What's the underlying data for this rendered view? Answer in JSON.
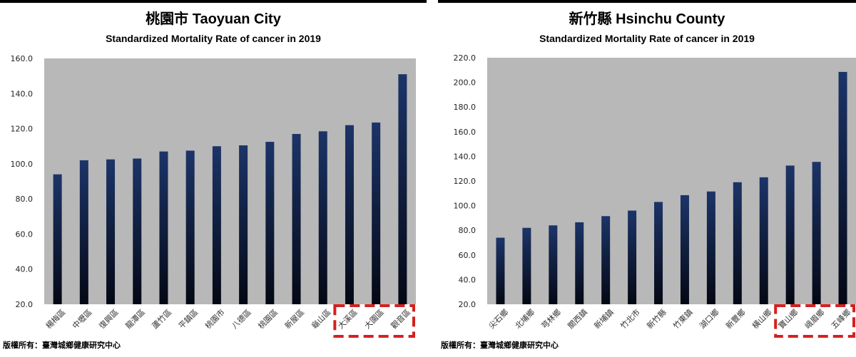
{
  "chart_data": [
    {
      "type": "bar",
      "title": "桃園市 Taoyuan City",
      "subtitle": "Standardized Mortality Rate of cancer in 2019",
      "categories": [
        "楊梅區",
        "中壢區",
        "復興區",
        "龍潭區",
        "蘆竹區",
        "平鎮區",
        "桃園市",
        "八德區",
        "桃園區",
        "新屋區",
        "龜山區",
        "大溪區",
        "大園區",
        "觀音區"
      ],
      "values": [
        94.0,
        102.0,
        102.5,
        103.0,
        107.0,
        107.5,
        110.0,
        110.5,
        112.5,
        117.0,
        118.5,
        122.0,
        123.5,
        151.0
      ],
      "yticks": [
        "20.0",
        "40.0",
        "60.0",
        "80.0",
        "100.0",
        "120.0",
        "140.0",
        "160.0"
      ],
      "ylim": [
        20,
        160
      ],
      "grid": false,
      "highlighted": [
        "大溪區",
        "大園區",
        "觀音區"
      ],
      "copyright": "版權所有：臺灣城鄉健康研究中心"
    },
    {
      "type": "bar",
      "title": "新竹縣 Hsinchu County",
      "subtitle": "Standardized Mortality Rate of cancer in 2019",
      "categories": [
        "尖石鄉",
        "北埔鄉",
        "芎林鄉",
        "關西鎮",
        "新埔鎮",
        "竹北市",
        "新竹縣",
        "竹東鎮",
        "湖口鄉",
        "新豐鄉",
        "橫山鄉",
        "寶山鄉",
        "峨眉鄉",
        "五峰鄉"
      ],
      "values": [
        74.0,
        82.0,
        84.0,
        86.5,
        91.5,
        96.0,
        103.0,
        108.5,
        111.5,
        119.0,
        123.0,
        132.5,
        135.5,
        208.5
      ],
      "yticks": [
        "20.0",
        "40.0",
        "60.0",
        "80.0",
        "100.0",
        "120.0",
        "140.0",
        "160.0",
        "180.0",
        "200.0",
        "220.0"
      ],
      "ylim": [
        20,
        220
      ],
      "grid": false,
      "highlighted": [
        "寶山鄉",
        "峨眉鄉",
        "五峰鄉"
      ],
      "copyright": "版權所有：臺灣城鄉健康研究中心"
    }
  ],
  "colors": {
    "plot_background": "#b8b8b8",
    "bar_top": "#1c3468",
    "bar_bottom": "#040814",
    "highlight_box": "#d62020"
  }
}
